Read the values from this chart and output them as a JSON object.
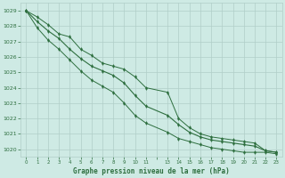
{
  "title": "Graphe pression niveau de la mer (hPa)",
  "bg_color": "#ceeae4",
  "grid_color": "#b0cec8",
  "line_color": "#2d6e3e",
  "xlim": [
    -0.5,
    23.5
  ],
  "ylim": [
    1019.5,
    1029.5
  ],
  "yticks": [
    1020,
    1021,
    1022,
    1023,
    1024,
    1025,
    1026,
    1027,
    1028,
    1029
  ],
  "xtick_labels": [
    "0",
    "1",
    "2",
    "3",
    "4",
    "5",
    "6",
    "7",
    "8",
    "9",
    "10",
    "11",
    "",
    "13",
    "14",
    "15",
    "16",
    "17",
    "18",
    "19",
    "20",
    "21",
    "22",
    "23"
  ],
  "hours": [
    0,
    1,
    2,
    3,
    4,
    5,
    6,
    7,
    8,
    9,
    10,
    11,
    13,
    14,
    15,
    16,
    17,
    18,
    19,
    20,
    21,
    22,
    23
  ],
  "pressure_top": [
    1029.0,
    1028.6,
    1028.1,
    1027.5,
    1027.3,
    1026.5,
    1026.1,
    1025.6,
    1025.4,
    1025.2,
    1024.7,
    1024.0,
    1023.7,
    1022.0,
    1021.4,
    1021.0,
    1020.8,
    1020.7,
    1020.6,
    1020.5,
    1020.4,
    1019.9,
    1019.8
  ],
  "pressure_mid": [
    1029.0,
    1028.3,
    1027.7,
    1027.2,
    1026.5,
    1025.9,
    1025.4,
    1025.1,
    1024.8,
    1024.3,
    1023.5,
    1022.8,
    1022.2,
    1021.6,
    1021.1,
    1020.8,
    1020.6,
    1020.5,
    1020.4,
    1020.3,
    1020.2,
    1019.9,
    1019.8
  ],
  "pressure_bot": [
    1029.0,
    1027.9,
    1027.1,
    1026.5,
    1025.8,
    1025.1,
    1024.5,
    1024.1,
    1023.7,
    1023.0,
    1022.2,
    1021.7,
    1021.1,
    1020.7,
    1020.5,
    1020.3,
    1020.1,
    1020.0,
    1019.9,
    1019.8,
    1019.8,
    1019.8,
    1019.7
  ]
}
